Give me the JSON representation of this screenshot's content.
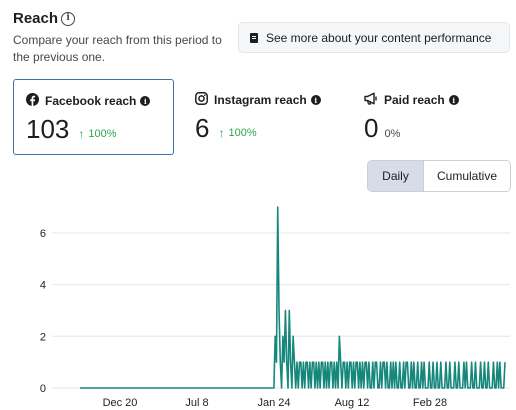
{
  "header": {
    "title": "Reach",
    "subtitle": "Compare your reach from this period to the previous one.",
    "see_more_label": "See more about your content performance"
  },
  "cards": [
    {
      "label": "Facebook reach",
      "value": "103",
      "delta": "100%",
      "icon": "facebook-icon",
      "active": true
    },
    {
      "label": "Instagram reach",
      "value": "6",
      "delta": "100%",
      "icon": "instagram-icon",
      "active": false
    },
    {
      "label": "Paid reach",
      "value": "0",
      "delta": "0%",
      "icon": "megaphone-icon",
      "active": false
    }
  ],
  "toggle": {
    "daily": "Daily",
    "cumulative": "Cumulative",
    "selected": "Daily"
  },
  "colors": {
    "accent_border": "#3b72a8",
    "positive": "#31a24c",
    "series": "#16877b"
  },
  "chart_data": {
    "type": "line",
    "x_tick_labels": [
      "Dec 20",
      "Jul 8",
      "Jan 24",
      "Aug 12",
      "Feb 28"
    ],
    "y_tick_labels": [
      "0",
      "2",
      "4",
      "6"
    ],
    "ylim": [
      0,
      7
    ],
    "grid": true,
    "series": [
      {
        "values": [
          0,
          0,
          0,
          0,
          0,
          0,
          0,
          0,
          0,
          0,
          0,
          0,
          0,
          0,
          0,
          0,
          0,
          0,
          0,
          0,
          0,
          0,
          0,
          0,
          0,
          0,
          0,
          0,
          0,
          0,
          0,
          0,
          0,
          0,
          0,
          0,
          0,
          0,
          0,
          0,
          0,
          0,
          0,
          0,
          0,
          0,
          0,
          0,
          0,
          0,
          0,
          0,
          0,
          0,
          0,
          0,
          0,
          0,
          0,
          0,
          0,
          0,
          0,
          0,
          0,
          0,
          0,
          0,
          0,
          0,
          0,
          0,
          0,
          0,
          0,
          0,
          0,
          0,
          0,
          0,
          0,
          0,
          0,
          0,
          0,
          0,
          0,
          0,
          0,
          0,
          0,
          0,
          0,
          0,
          0,
          0,
          0,
          0,
          0,
          0,
          0,
          0,
          0,
          0,
          0,
          0,
          0,
          0,
          0,
          0,
          0,
          0,
          0,
          0,
          0,
          0,
          0,
          0,
          0,
          0,
          0,
          0,
          0,
          0,
          0,
          0,
          0,
          0,
          0,
          0,
          0,
          0,
          0,
          0,
          0,
          0,
          0,
          0,
          0,
          0,
          0,
          0,
          0,
          0,
          0,
          0,
          0,
          0,
          0,
          0,
          0,
          0,
          2,
          1,
          7,
          3,
          1,
          0,
          2,
          1,
          3,
          1,
          0,
          3,
          1,
          0,
          2,
          1,
          0,
          1,
          0,
          1,
          1,
          0,
          1,
          0,
          1,
          1,
          0,
          1,
          0,
          1,
          1,
          0,
          1,
          0,
          1,
          0,
          1,
          1,
          0,
          1,
          0,
          1,
          0,
          1,
          1,
          0,
          1,
          0,
          1,
          0,
          2,
          1,
          0,
          1,
          1,
          0,
          1,
          0,
          1,
          1,
          0,
          1,
          0,
          1,
          1,
          0,
          1,
          0,
          1,
          0,
          1,
          1,
          0,
          1,
          0,
          0,
          1,
          0,
          1,
          1,
          0,
          0,
          1,
          0,
          1,
          1,
          0,
          1,
          0,
          0,
          1,
          0,
          1,
          0,
          1,
          0,
          0,
          1,
          0,
          0,
          1,
          0,
          1,
          1,
          0,
          0,
          1,
          0,
          1,
          0,
          0,
          1,
          0,
          0,
          1,
          0,
          1,
          0,
          0,
          0,
          1,
          0,
          0,
          1,
          0,
          0,
          1,
          0,
          0,
          1,
          0,
          0,
          0,
          1,
          0,
          0,
          1,
          0,
          0,
          0,
          1,
          0,
          0,
          1,
          0,
          0,
          0,
          1,
          0,
          1,
          0,
          0,
          0,
          1,
          0,
          0,
          1,
          0,
          0,
          0,
          1,
          0,
          0,
          1,
          0,
          0,
          1,
          0,
          0,
          0,
          1,
          0,
          0,
          1,
          0,
          1,
          0,
          0,
          0,
          1
        ]
      }
    ]
  }
}
